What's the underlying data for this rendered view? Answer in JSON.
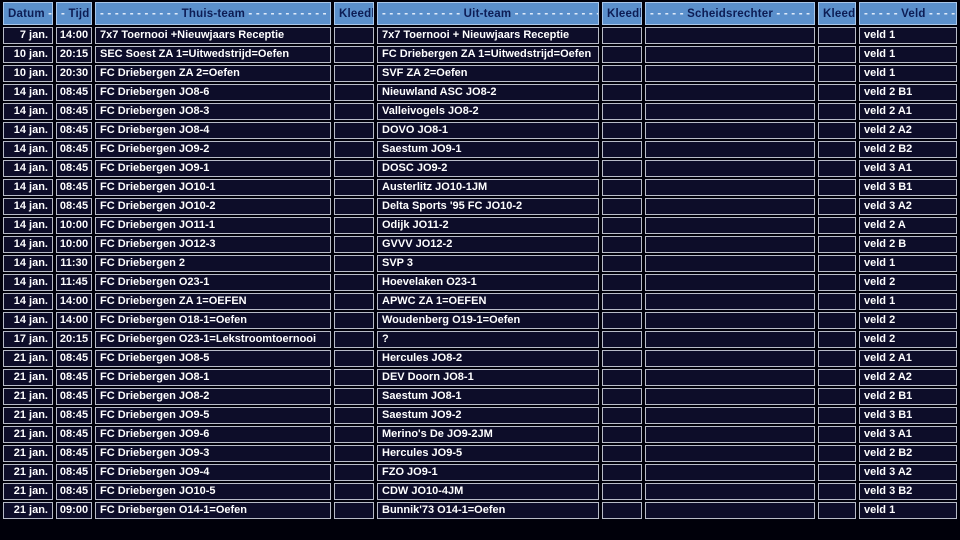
{
  "colors": {
    "page_bg": "#00000a",
    "header_bg": "#5b90cc",
    "header_text": "#0d1d55",
    "header_dashes": "#e6effc",
    "cell_bg": "#0d0d29",
    "cell_text": "#ffffff",
    "grid_border": "#b8bcc8"
  },
  "table": {
    "columns": [
      {
        "key": "datum",
        "pre": "",
        "label": "Datum",
        "post": "- -"
      },
      {
        "key": "tijd",
        "pre": "-",
        "label": "Tijd",
        "post": ""
      },
      {
        "key": "thuis",
        "pre": "- - - - - - - - - - -",
        "label": "Thuis-team",
        "post": "- - - - - - - - - - - - -"
      },
      {
        "key": "kleedk1",
        "pre": "",
        "label": "Kleedk",
        "post": ""
      },
      {
        "key": "uit",
        "pre": "- - - - - - - - - - -",
        "label": "Uit-team",
        "post": "- - - - - - - - - - - - - -"
      },
      {
        "key": "kleedk2",
        "pre": "",
        "label": "Kleedk",
        "post": ""
      },
      {
        "key": "scheids",
        "pre": "- - - - -",
        "label": "Scheidsrechter",
        "post": "- - - - - -"
      },
      {
        "key": "kleedk3",
        "pre": "",
        "label": "Kleedk",
        "post": ""
      },
      {
        "key": "veld",
        "pre": "- - - - -",
        "label": "Veld",
        "post": "- - - - -"
      }
    ],
    "rows": [
      {
        "datum": "7 jan.",
        "tijd": "14:00",
        "thuis": "7x7 Toernooi +Nieuwjaars Receptie",
        "kleedk1": "",
        "uit": "7x7 Toernooi + Nieuwjaars Receptie",
        "kleedk2": "",
        "scheids": "",
        "kleedk3": "",
        "veld": "veld 1"
      },
      {
        "datum": "10 jan.",
        "tijd": "20:15",
        "thuis": "SEC Soest ZA 1=Uitwedstrijd=Oefen",
        "kleedk1": "",
        "uit": "FC Driebergen ZA 1=Uitwedstrijd=Oefen",
        "kleedk2": "",
        "scheids": "",
        "kleedk3": "",
        "veld": "veld 1"
      },
      {
        "datum": "10 jan.",
        "tijd": "20:30",
        "thuis": "FC Driebergen ZA 2=Oefen",
        "kleedk1": "",
        "uit": "SVF ZA 2=Oefen",
        "kleedk2": "",
        "scheids": "",
        "kleedk3": "",
        "veld": "veld 1"
      },
      {
        "datum": "14 jan.",
        "tijd": "08:45",
        "thuis": "FC Driebergen JO8-6",
        "kleedk1": "",
        "uit": "Nieuwland ASC JO8-2",
        "kleedk2": "",
        "scheids": "",
        "kleedk3": "",
        "veld": "veld 2 B1"
      },
      {
        "datum": "14 jan.",
        "tijd": "08:45",
        "thuis": "FC Driebergen JO8-3",
        "kleedk1": "",
        "uit": "Valleivogels JO8-2",
        "kleedk2": "",
        "scheids": "",
        "kleedk3": "",
        "veld": "veld 2 A1"
      },
      {
        "datum": "14 jan.",
        "tijd": "08:45",
        "thuis": "FC Driebergen JO8-4",
        "kleedk1": "",
        "uit": "DOVO JO8-1",
        "kleedk2": "",
        "scheids": "",
        "kleedk3": "",
        "veld": "veld 2 A2"
      },
      {
        "datum": "14 jan.",
        "tijd": "08:45",
        "thuis": "FC Driebergen JO9-2",
        "kleedk1": "",
        "uit": "Saestum JO9-1",
        "kleedk2": "",
        "scheids": "",
        "kleedk3": "",
        "veld": "veld 2 B2"
      },
      {
        "datum": "14 jan.",
        "tijd": "08:45",
        "thuis": "FC Driebergen JO9-1",
        "kleedk1": "",
        "uit": "DOSC JO9-2",
        "kleedk2": "",
        "scheids": "",
        "kleedk3": "",
        "veld": "veld 3 A1"
      },
      {
        "datum": "14 jan.",
        "tijd": "08:45",
        "thuis": "FC Driebergen JO10-1",
        "kleedk1": "",
        "uit": "Austerlitz JO10-1JM",
        "kleedk2": "",
        "scheids": "",
        "kleedk3": "",
        "veld": "veld 3 B1"
      },
      {
        "datum": "14 jan.",
        "tijd": "08:45",
        "thuis": "FC Driebergen JO10-2",
        "kleedk1": "",
        "uit": "Delta Sports '95 FC JO10-2",
        "kleedk2": "",
        "scheids": "",
        "kleedk3": "",
        "veld": "veld 3 A2"
      },
      {
        "datum": "14 jan.",
        "tijd": "10:00",
        "thuis": "FC Driebergen JO11-1",
        "kleedk1": "",
        "uit": "Odijk JO11-2",
        "kleedk2": "",
        "scheids": "",
        "kleedk3": "",
        "veld": "veld 2 A"
      },
      {
        "datum": "14 jan.",
        "tijd": "10:00",
        "thuis": "FC Driebergen JO12-3",
        "kleedk1": "",
        "uit": "GVVV JO12-2",
        "kleedk2": "",
        "scheids": "",
        "kleedk3": "",
        "veld": "veld 2 B"
      },
      {
        "datum": "14 jan.",
        "tijd": "11:30",
        "thuis": "FC Driebergen 2",
        "kleedk1": "",
        "uit": "SVP 3",
        "kleedk2": "",
        "scheids": "",
        "kleedk3": "",
        "veld": "veld 1"
      },
      {
        "datum": "14 jan.",
        "tijd": "11:45",
        "thuis": "FC Driebergen O23-1",
        "kleedk1": "",
        "uit": "Hoevelaken O23-1",
        "kleedk2": "",
        "scheids": "",
        "kleedk3": "",
        "veld": "veld 2"
      },
      {
        "datum": "14 jan.",
        "tijd": "14:00",
        "thuis": "FC Driebergen ZA 1=OEFEN",
        "kleedk1": "",
        "uit": "APWC ZA 1=OEFEN",
        "kleedk2": "",
        "scheids": "",
        "kleedk3": "",
        "veld": "veld 1"
      },
      {
        "datum": "14 jan.",
        "tijd": "14:00",
        "thuis": "FC Driebergen O18-1=Oefen",
        "kleedk1": "",
        "uit": "Woudenberg O19-1=Oefen",
        "kleedk2": "",
        "scheids": "",
        "kleedk3": "",
        "veld": "veld 2"
      },
      {
        "datum": "17 jan.",
        "tijd": "20:15",
        "thuis": "FC Driebergen O23-1=Lekstroomtoernooi",
        "kleedk1": "",
        "uit": "?",
        "kleedk2": "",
        "scheids": "",
        "kleedk3": "",
        "veld": "veld 2"
      },
      {
        "datum": "21 jan.",
        "tijd": "08:45",
        "thuis": "FC Driebergen JO8-5",
        "kleedk1": "",
        "uit": "Hercules JO8-2",
        "kleedk2": "",
        "scheids": "",
        "kleedk3": "",
        "veld": "veld 2 A1"
      },
      {
        "datum": "21 jan.",
        "tijd": "08:45",
        "thuis": "FC Driebergen JO8-1",
        "kleedk1": "",
        "uit": "DEV Doorn JO8-1",
        "kleedk2": "",
        "scheids": "",
        "kleedk3": "",
        "veld": "veld 2 A2"
      },
      {
        "datum": "21 jan.",
        "tijd": "08:45",
        "thuis": "FC Driebergen JO8-2",
        "kleedk1": "",
        "uit": "Saestum JO8-1",
        "kleedk2": "",
        "scheids": "",
        "kleedk3": "",
        "veld": "veld 2 B1"
      },
      {
        "datum": "21 jan.",
        "tijd": "08:45",
        "thuis": "FC Driebergen JO9-5",
        "kleedk1": "",
        "uit": "Saestum JO9-2",
        "kleedk2": "",
        "scheids": "",
        "kleedk3": "",
        "veld": "veld 3 B1"
      },
      {
        "datum": "21 jan.",
        "tijd": "08:45",
        "thuis": "FC Driebergen JO9-6",
        "kleedk1": "",
        "uit": "Merino's De JO9-2JM",
        "kleedk2": "",
        "scheids": "",
        "kleedk3": "",
        "veld": "veld 3 A1"
      },
      {
        "datum": "21 jan.",
        "tijd": "08:45",
        "thuis": "FC Driebergen JO9-3",
        "kleedk1": "",
        "uit": "Hercules JO9-5",
        "kleedk2": "",
        "scheids": "",
        "kleedk3": "",
        "veld": "veld 2 B2"
      },
      {
        "datum": "21 jan.",
        "tijd": "08:45",
        "thuis": "FC Driebergen JO9-4",
        "kleedk1": "",
        "uit": "FZO JO9-1",
        "kleedk2": "",
        "scheids": "",
        "kleedk3": "",
        "veld": "veld 3 A2"
      },
      {
        "datum": "21 jan.",
        "tijd": "08:45",
        "thuis": "FC Driebergen JO10-5",
        "kleedk1": "",
        "uit": "CDW JO10-4JM",
        "kleedk2": "",
        "scheids": "",
        "kleedk3": "",
        "veld": "veld 3 B2"
      },
      {
        "datum": "21 jan.",
        "tijd": "09:00",
        "thuis": "FC Driebergen O14-1=Oefen",
        "kleedk1": "",
        "uit": "Bunnik'73 O14-1=Oefen",
        "kleedk2": "",
        "scheids": "",
        "kleedk3": "",
        "veld": "veld 1"
      }
    ]
  }
}
